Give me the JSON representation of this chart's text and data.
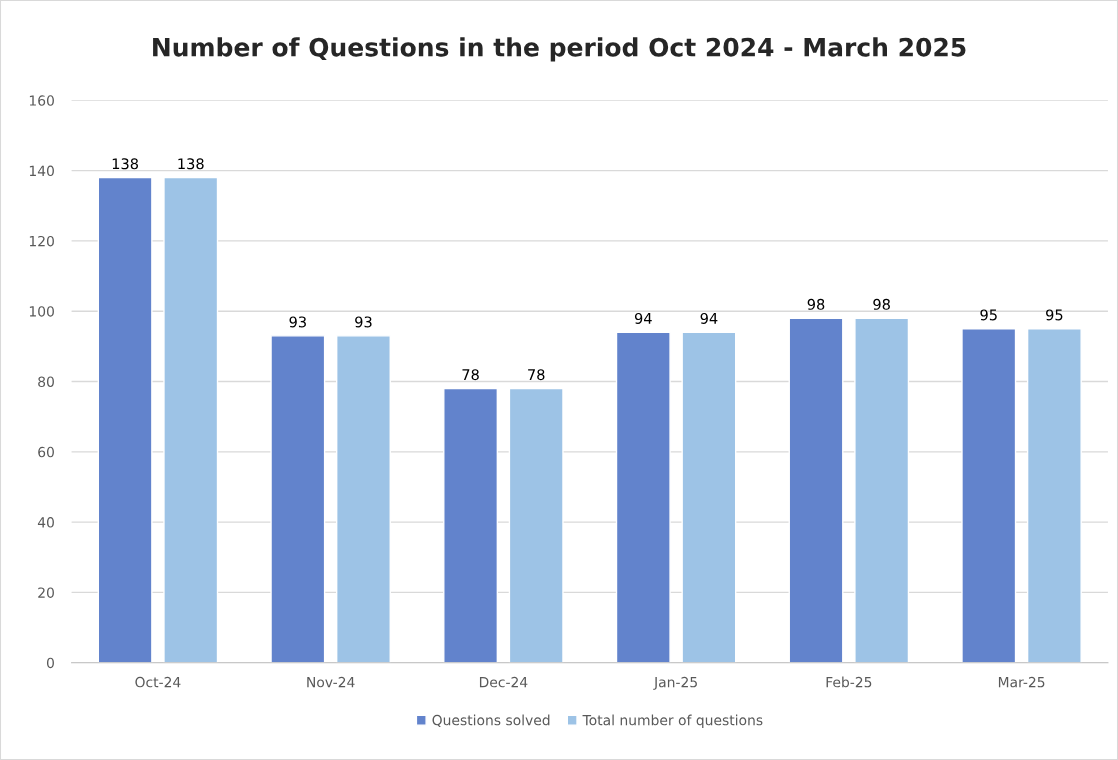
{
  "chart_data": {
    "type": "bar",
    "title": "Number of Questions in the period Oct 2024 - March 2025",
    "categories": [
      "Oct-24",
      "Nov-24",
      "Dec-24",
      "Jan-25",
      "Feb-25",
      "Mar-25"
    ],
    "series": [
      {
        "name": "Questions solved",
        "color": "#6283cc",
        "values": [
          138,
          93,
          78,
          94,
          98,
          95
        ]
      },
      {
        "name": "Total number of questions",
        "color": "#9dc3e6",
        "values": [
          138,
          93,
          78,
          94,
          98,
          95
        ]
      }
    ],
    "ylim": [
      0,
      160
    ],
    "yticks": [
      0,
      20,
      40,
      60,
      80,
      100,
      120,
      140,
      160
    ],
    "grid": "y",
    "legend": "bottom",
    "data_labels": true
  }
}
